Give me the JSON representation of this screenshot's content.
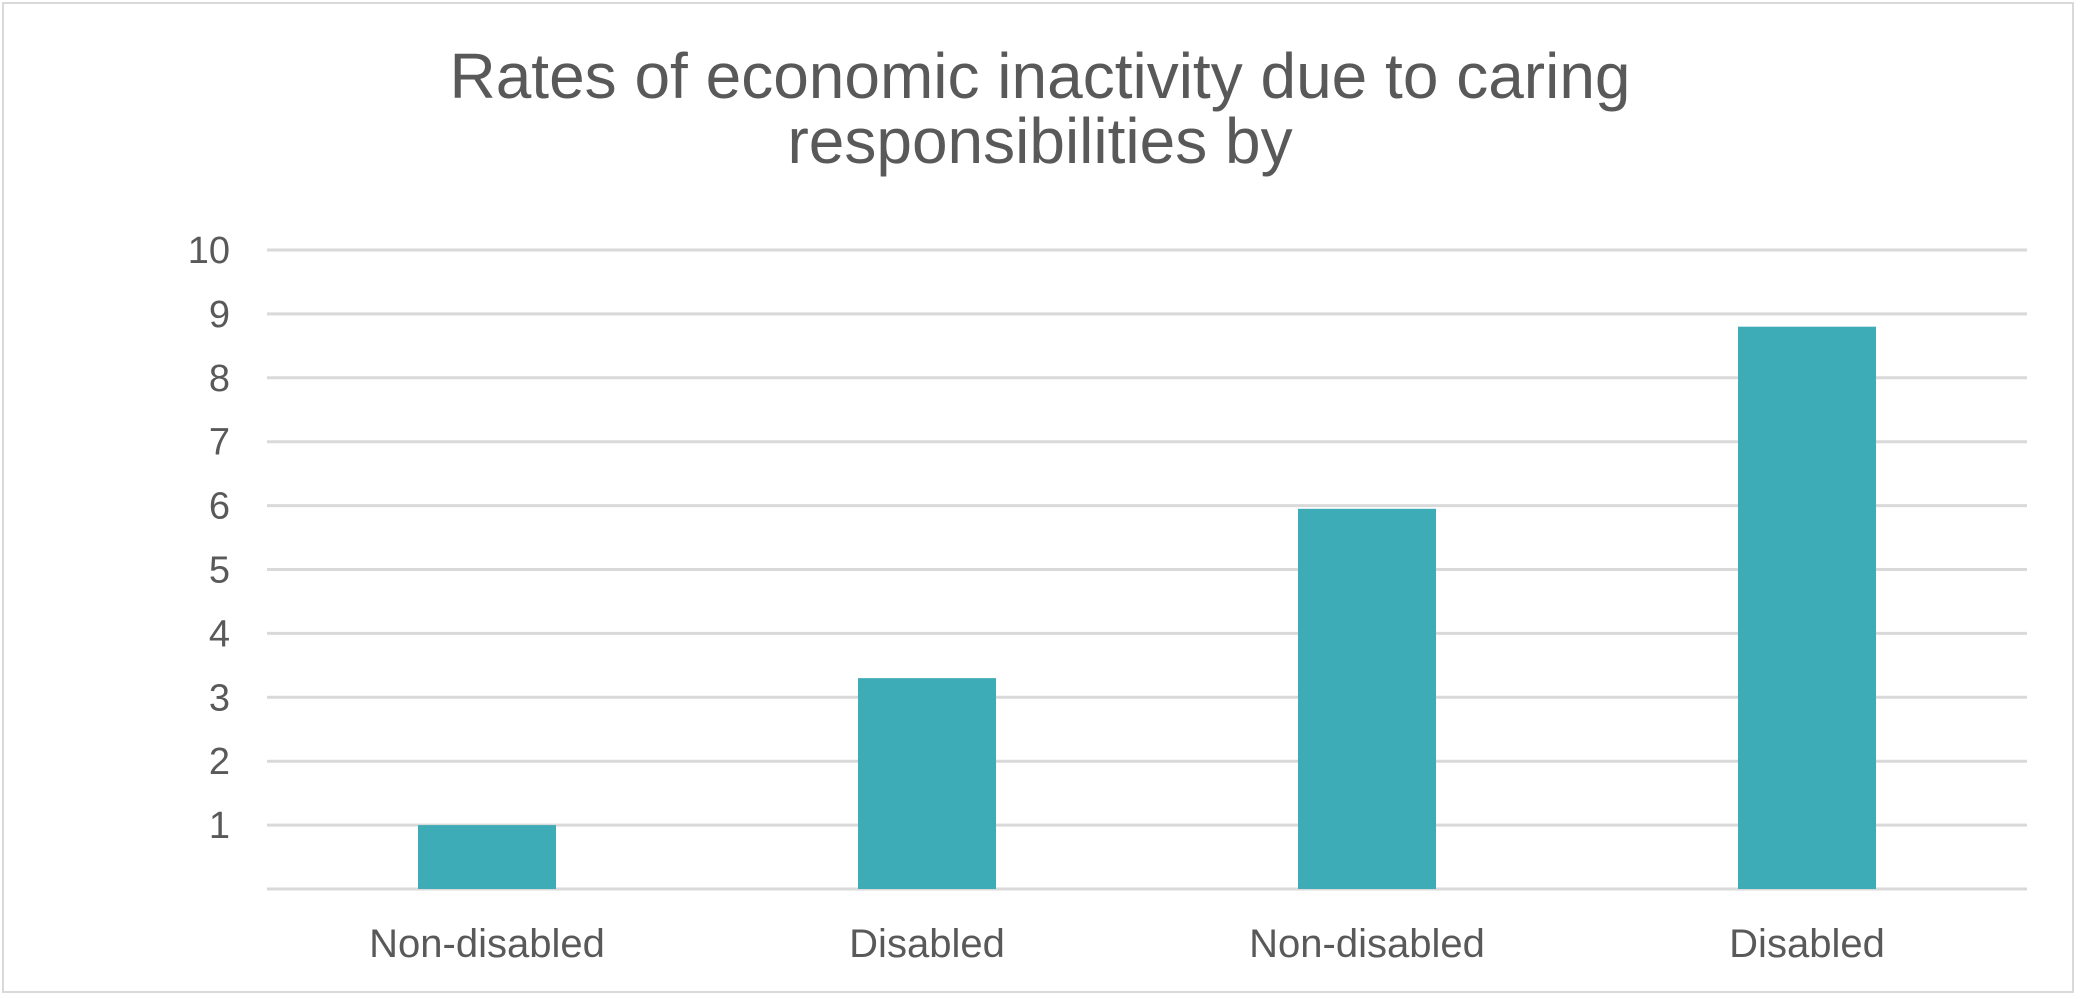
{
  "chart_data": {
    "type": "bar",
    "title_lines": [
      "Rates of economic inactivity due to caring",
      "responsibilities by"
    ],
    "categories": [
      "Non-disabled",
      "Disabled",
      "Non-disabled",
      "Disabled"
    ],
    "values": [
      1.0,
      3.3,
      5.95,
      8.8
    ],
    "ylim": [
      0,
      10
    ],
    "yticks": [
      1,
      2,
      3,
      4,
      5,
      6,
      7,
      8,
      9,
      10
    ],
    "grid": true,
    "legend": "none",
    "bar_color": "#3eacb7",
    "grid_color": "#d9d9d9",
    "text_color": "#595959"
  }
}
